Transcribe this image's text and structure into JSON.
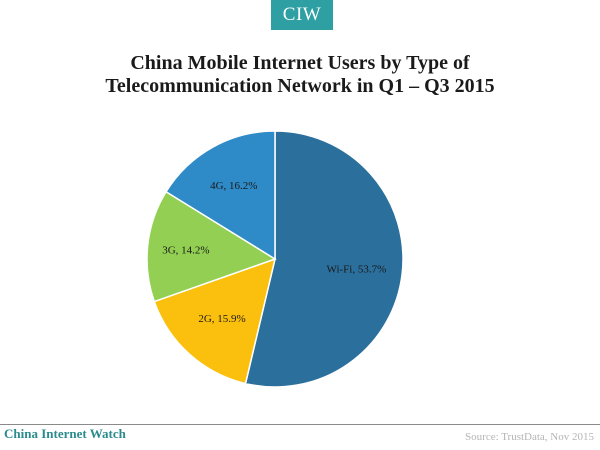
{
  "logo": {
    "text": "CIW"
  },
  "chart_data": {
    "type": "pie",
    "title_lines": [
      "China Mobile Internet Users by Type of",
      "Telecommunication Network in Q1 – Q3 2015"
    ],
    "slices": [
      {
        "name": "Wi-Fi",
        "value": 53.7,
        "label": "Wi-Fi, 53.7%",
        "color": "#2b6f9c"
      },
      {
        "name": "2G",
        "value": 15.9,
        "label": "2G, 15.9%",
        "color": "#fbbf0e"
      },
      {
        "name": "3G",
        "value": 14.2,
        "label": "3G, 14.2%",
        "color": "#92cf52"
      },
      {
        "name": "4G",
        "value": 16.2,
        "label": "4G, 16.2%",
        "color": "#2f8ac8"
      }
    ],
    "start_angle_deg": 0,
    "direction": "clockwise"
  },
  "footer": {
    "brand": "China Internet Watch",
    "source": "Source: TrustData, Nov 2015"
  }
}
